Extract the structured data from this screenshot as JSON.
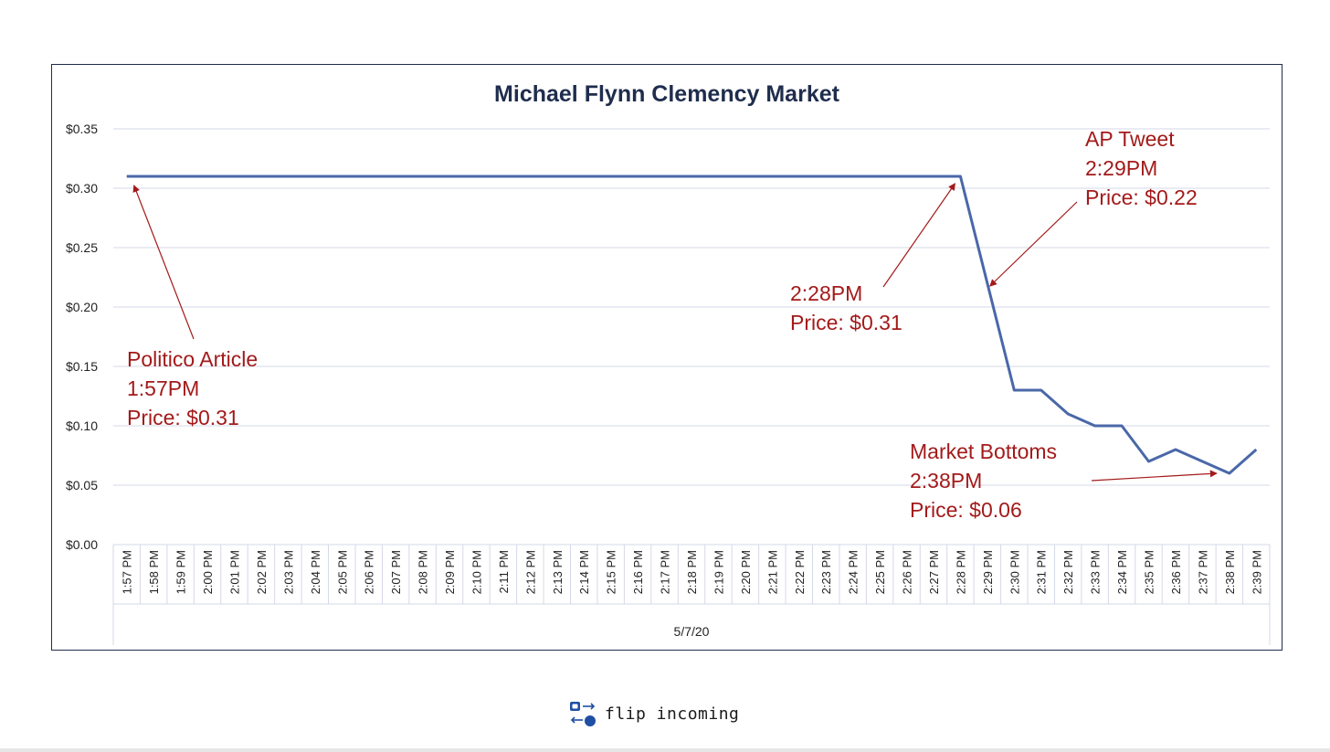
{
  "chart_data": {
    "type": "line",
    "title": "Michael Flynn Clemency Market",
    "xlabel": "5/7/20",
    "ylabel": "",
    "ylim": [
      0,
      0.35
    ],
    "yticks": [
      "$0.00",
      "$0.05",
      "$0.10",
      "$0.15",
      "$0.20",
      "$0.25",
      "$0.30",
      "$0.35"
    ],
    "grid": true,
    "categories": [
      "1:57 PM",
      "1:58 PM",
      "1:59 PM",
      "2:00 PM",
      "2:01 PM",
      "2:02 PM",
      "2:03 PM",
      "2:04 PM",
      "2:05 PM",
      "2:06 PM",
      "2:07 PM",
      "2:08 PM",
      "2:09 PM",
      "2:10 PM",
      "2:11 PM",
      "2:12 PM",
      "2:13 PM",
      "2:14 PM",
      "2:15 PM",
      "2:16 PM",
      "2:17 PM",
      "2:18 PM",
      "2:19 PM",
      "2:20 PM",
      "2:21 PM",
      "2:22 PM",
      "2:23 PM",
      "2:24 PM",
      "2:25 PM",
      "2:26 PM",
      "2:27 PM",
      "2:28 PM",
      "2:29 PM",
      "2:30 PM",
      "2:31 PM",
      "2:32 PM",
      "2:33 PM",
      "2:34 PM",
      "2:35 PM",
      "2:36 PM",
      "2:37 PM",
      "2:38 PM",
      "2:39 PM"
    ],
    "series": [
      {
        "values": [
          0.31,
          0.31,
          0.31,
          0.31,
          0.31,
          0.31,
          0.31,
          0.31,
          0.31,
          0.31,
          0.31,
          0.31,
          0.31,
          0.31,
          0.31,
          0.31,
          0.31,
          0.31,
          0.31,
          0.31,
          0.31,
          0.31,
          0.31,
          0.31,
          0.31,
          0.31,
          0.31,
          0.31,
          0.31,
          0.31,
          0.31,
          0.31,
          0.22,
          0.13,
          0.13,
          0.11,
          0.1,
          0.1,
          0.07,
          0.08,
          0.07,
          0.06,
          0.08
        ]
      }
    ],
    "annotations": [
      {
        "lines": [
          "Politico Article",
          "1:57PM",
          "Price: $0.31"
        ],
        "target_index": 0
      },
      {
        "lines": [
          "2:28PM",
          "Price: $0.31"
        ],
        "target_index": 31
      },
      {
        "lines": [
          "AP Tweet",
          "2:29PM",
          "Price: $0.22"
        ],
        "target_index": 32
      },
      {
        "lines": [
          "Market  Bottoms",
          "2:38PM",
          "Price: $0.06"
        ],
        "target_index": 41
      }
    ]
  },
  "colors": {
    "line": "#4a68a8",
    "annotation": "#a31a1a",
    "title": "#1f2d4d",
    "grid": "#d5d9e8"
  },
  "brand": {
    "name": "flip incoming",
    "icon": "flip-incoming-logo-icon"
  }
}
